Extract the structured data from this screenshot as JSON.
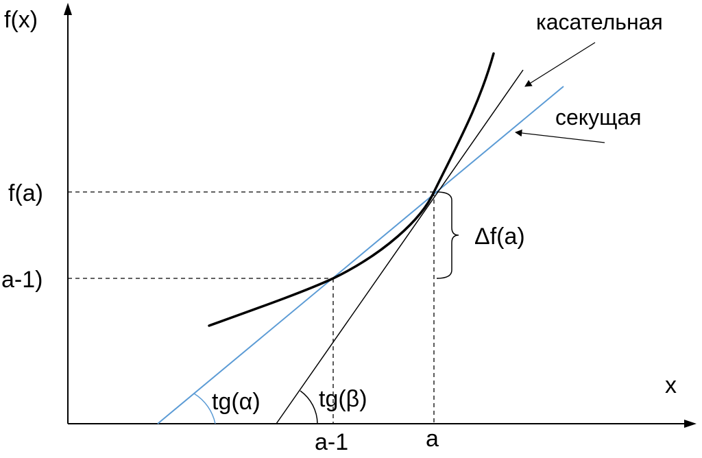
{
  "labels": {
    "y_axis": "f(x)",
    "x_axis": "x",
    "fa": "f(a)",
    "fa_minus_1": "a-1)",
    "tick_a_minus_1": "a-1",
    "tick_a": "a",
    "delta": "Δf(a)",
    "tangent": "касательная",
    "secant": "секущая",
    "tg_alpha": "tg(α)",
    "tg_beta": "tg(β)"
  },
  "colors": {
    "axis": "#000000",
    "curve": "#000000",
    "tangent": "#000000",
    "secant": "#5b9bd5",
    "dashed": "#000000"
  }
}
